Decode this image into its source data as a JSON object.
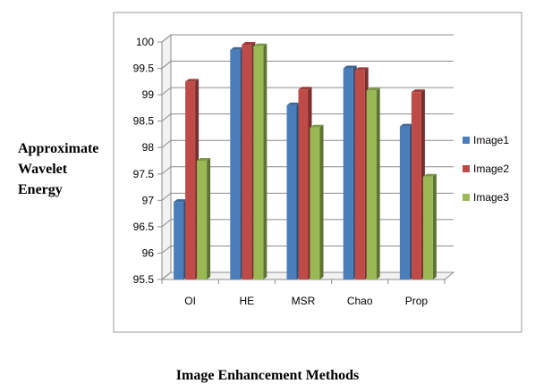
{
  "chart_data": {
    "type": "bar",
    "title": "",
    "ylabel_lines": [
      "Approximate",
      "Wavelet",
      "Energy"
    ],
    "xlabel": "Image Enhancement Methods",
    "categories": [
      "OI",
      "HE",
      "MSR",
      "Chao",
      "Prop"
    ],
    "series": [
      {
        "name": "Image1",
        "color": "#4a7ebb",
        "values": [
          96.97,
          99.85,
          98.8,
          99.5,
          98.4
        ]
      },
      {
        "name": "Image2",
        "color": "#be4b48",
        "values": [
          99.25,
          99.95,
          99.1,
          99.47,
          99.05
        ]
      },
      {
        "name": "Image3",
        "color": "#98b954",
        "values": [
          97.75,
          99.92,
          98.38,
          99.08,
          97.45
        ]
      }
    ],
    "ylim": [
      95.5,
      100
    ],
    "yticks": [
      "95.5",
      "96",
      "96.5",
      "97",
      "97.5",
      "98",
      "98.5",
      "99",
      "99.5",
      "100"
    ],
    "grid": true,
    "legend": "right",
    "style": "3d-clustered-column"
  }
}
